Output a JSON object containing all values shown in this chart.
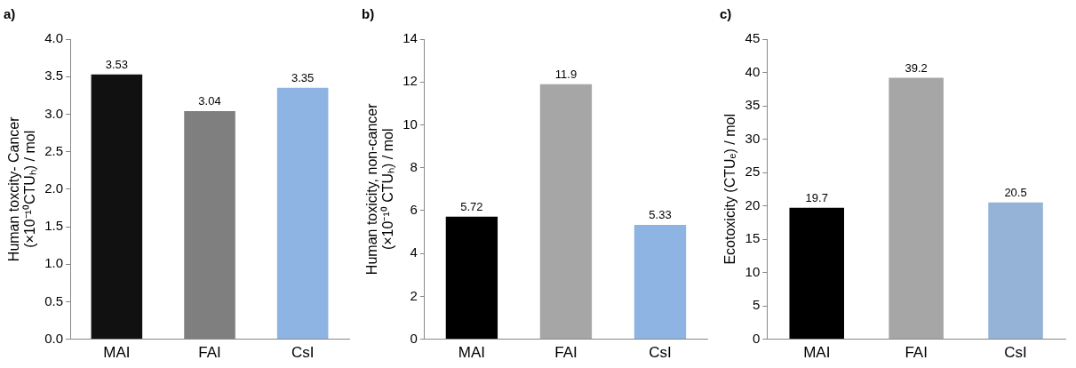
{
  "chart_data": [
    {
      "type": "bar",
      "title": "a)",
      "ylabel": "Human toxcity- Cancer\n(×10⁻¹⁰CTUₕ) / mol",
      "categories": [
        "MAI",
        "FAI",
        "CsI"
      ],
      "values": [
        3.53,
        3.04,
        3.35
      ],
      "colors": [
        "#111111",
        "#7f7f7f",
        "#8eb4e3"
      ],
      "ylim": [
        0,
        4
      ],
      "yticks": [
        {
          "value": 0,
          "label": "0.0"
        },
        {
          "value": 0.5,
          "label": "0.5"
        },
        {
          "value": 1,
          "label": "1.0"
        },
        {
          "value": 1.5,
          "label": "1.5"
        },
        {
          "value": 2,
          "label": "2.0"
        },
        {
          "value": 2.5,
          "label": "2.5"
        },
        {
          "value": 3,
          "label": "3.0"
        },
        {
          "value": 3.5,
          "label": "3.5"
        },
        {
          "value": 4,
          "label": "4.0"
        }
      ],
      "data_labels": true,
      "grid": false,
      "legend": false
    },
    {
      "type": "bar",
      "title": "b)",
      "ylabel": "Human toxicity, non-cancer\n(×10⁻¹⁰ CTUₕ) / mol",
      "categories": [
        "MAI",
        "FAI",
        "CsI"
      ],
      "values": [
        5.72,
        11.9,
        5.33
      ],
      "colors": [
        "#000000",
        "#a6a6a6",
        "#8eb4e3"
      ],
      "ylim": [
        0,
        14
      ],
      "yticks": [
        0,
        2,
        4,
        6,
        8,
        10,
        12,
        14
      ],
      "data_labels": true,
      "grid": false,
      "legend": false
    },
    {
      "type": "bar",
      "title": "c)",
      "ylabel": "Ecotoxicity (CTUₑ) / mol",
      "categories": [
        "MAI",
        "FAI",
        "CsI"
      ],
      "values": [
        19.7,
        39.2,
        20.5
      ],
      "colors": [
        "#000000",
        "#a6a6a6",
        "#95b3d7"
      ],
      "ylim": [
        0,
        45
      ],
      "yticks": [
        0,
        5,
        10,
        15,
        20,
        25,
        30,
        35,
        40,
        45
      ],
      "data_labels": true,
      "grid": false,
      "legend": false
    }
  ]
}
